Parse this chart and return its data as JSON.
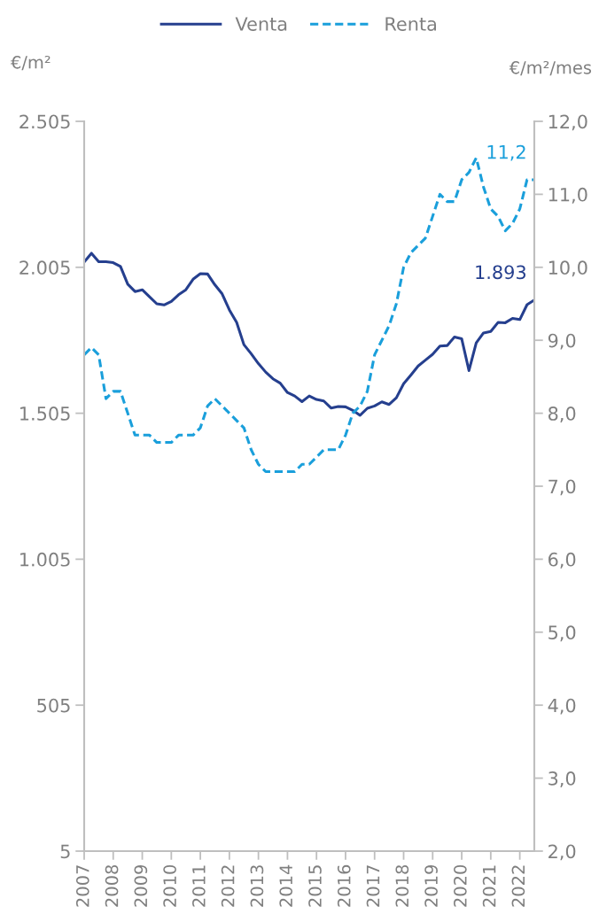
{
  "chart_data": {
    "type": "line",
    "ylabel": "€/m²",
    "y2label": "€/m²/mes",
    "legend": "top",
    "grid": false,
    "marker": "none",
    "x": [
      2007,
      2007.25,
      2007.5,
      2007.75,
      2008,
      2008.25,
      2008.5,
      2008.75,
      2009,
      2009.25,
      2009.5,
      2009.75,
      2010,
      2010.25,
      2010.5,
      2010.75,
      2011,
      2011.25,
      2011.5,
      2011.75,
      2012,
      2012.25,
      2012.5,
      2012.75,
      2013,
      2013.25,
      2013.5,
      2013.75,
      2014,
      2014.25,
      2014.5,
      2014.75,
      2015,
      2015.25,
      2015.5,
      2015.75,
      2016,
      2016.25,
      2016.5,
      2016.75,
      2017,
      2017.25,
      2017.5,
      2017.75,
      2018,
      2018.25,
      2018.5,
      2018.75,
      2019,
      2019.25,
      2019.5,
      2019.75,
      2020,
      2020.25,
      2020.5,
      2020.75,
      2021,
      2021.25,
      2021.5,
      2021.75,
      2022,
      2022.25,
      2022.5
    ],
    "xlim": [
      2007,
      2022.5
    ],
    "xticks": [
      2007,
      2008,
      2009,
      2010,
      2011,
      2012,
      2013,
      2014,
      2015,
      2016,
      2017,
      2018,
      2019,
      2020,
      2021,
      2022
    ],
    "ylim": [
      5,
      2505
    ],
    "yticks": [
      {
        "value": 5,
        "label": "5"
      },
      {
        "value": 505,
        "label": "505"
      },
      {
        "value": 1005,
        "label": "1.005"
      },
      {
        "value": 1505,
        "label": "1.505"
      },
      {
        "value": 2005,
        "label": "2.005"
      },
      {
        "value": 2505,
        "label": "2.505"
      }
    ],
    "y2lim": [
      2,
      12
    ],
    "y2ticks": [
      {
        "value": 2,
        "label": "2,0"
      },
      {
        "value": 3,
        "label": "3,0"
      },
      {
        "value": 4,
        "label": "4,0"
      },
      {
        "value": 5,
        "label": "5,0"
      },
      {
        "value": 6,
        "label": "6,0"
      },
      {
        "value": 7,
        "label": "7,0"
      },
      {
        "value": 8,
        "label": "8,0"
      },
      {
        "value": 9,
        "label": "9,0"
      },
      {
        "value": 10,
        "label": "10,0"
      },
      {
        "value": 11,
        "label": "11,0"
      },
      {
        "value": 12,
        "label": "12,0"
      }
    ],
    "series": [
      {
        "name": "Venta",
        "color": "#253f8e",
        "line_style": "solid",
        "values": [
          2023,
          2053,
          2024,
          2024,
          2021,
          2008,
          1947,
          1922,
          1928,
          1904,
          1880,
          1876,
          1888,
          1911,
          1928,
          1964,
          1983,
          1982,
          1945,
          1914,
          1859,
          1816,
          1740,
          1709,
          1675,
          1646,
          1623,
          1608,
          1576,
          1564,
          1545,
          1564,
          1552,
          1547,
          1523,
          1528,
          1527,
          1515,
          1498,
          1522,
          1530,
          1544,
          1535,
          1558,
          1606,
          1636,
          1667,
          1687,
          1707,
          1735,
          1737,
          1766,
          1760,
          1651,
          1746,
          1780,
          1785,
          1816,
          1815,
          1830,
          1826,
          1877,
          1893
        ],
        "value_labels": [
          null,
          null,
          null,
          null,
          null,
          null,
          null,
          null,
          null,
          null,
          null,
          null,
          null,
          null,
          null,
          null,
          null,
          null,
          null,
          null,
          null,
          null,
          null,
          null,
          null,
          null,
          null,
          null,
          null,
          null,
          null,
          null,
          null,
          null,
          null,
          null,
          null,
          null,
          null,
          null,
          null,
          null,
          null,
          null,
          null,
          null,
          null,
          null,
          null,
          null,
          null,
          null,
          null,
          null,
          null,
          null,
          null,
          null,
          null,
          null,
          null,
          null,
          "1.893"
        ]
      },
      {
        "name": "Renta",
        "color": "#1a9fdb",
        "line_style": "dashed",
        "axis": "y2",
        "values": [
          8.8,
          8.9,
          8.8,
          8.2,
          8.3,
          8.3,
          8.0,
          7.7,
          7.7,
          7.7,
          7.6,
          7.6,
          7.6,
          7.7,
          7.7,
          7.7,
          7.8,
          8.1,
          8.2,
          8.1,
          8.0,
          7.9,
          7.8,
          7.5,
          7.3,
          7.2,
          7.2,
          7.2,
          7.2,
          7.2,
          7.3,
          7.3,
          7.4,
          7.5,
          7.5,
          7.5,
          7.7,
          8.0,
          8.1,
          8.3,
          8.8,
          9.0,
          9.2,
          9.5,
          10.0,
          10.2,
          10.3,
          10.4,
          10.7,
          11.0,
          10.9,
          10.9,
          11.2,
          11.3,
          11.5,
          11.1,
          10.8,
          10.7,
          10.5,
          10.6,
          10.8,
          11.2,
          11.2
        ],
        "value_labels": [
          null,
          null,
          null,
          null,
          null,
          null,
          null,
          null,
          null,
          null,
          null,
          null,
          null,
          null,
          null,
          null,
          null,
          null,
          null,
          null,
          null,
          null,
          null,
          null,
          null,
          null,
          null,
          null,
          null,
          null,
          null,
          null,
          null,
          null,
          null,
          null,
          null,
          null,
          null,
          null,
          null,
          null,
          null,
          null,
          null,
          null,
          null,
          null,
          null,
          null,
          null,
          null,
          null,
          null,
          null,
          null,
          null,
          null,
          null,
          null,
          null,
          null,
          "11,2"
        ]
      }
    ]
  }
}
